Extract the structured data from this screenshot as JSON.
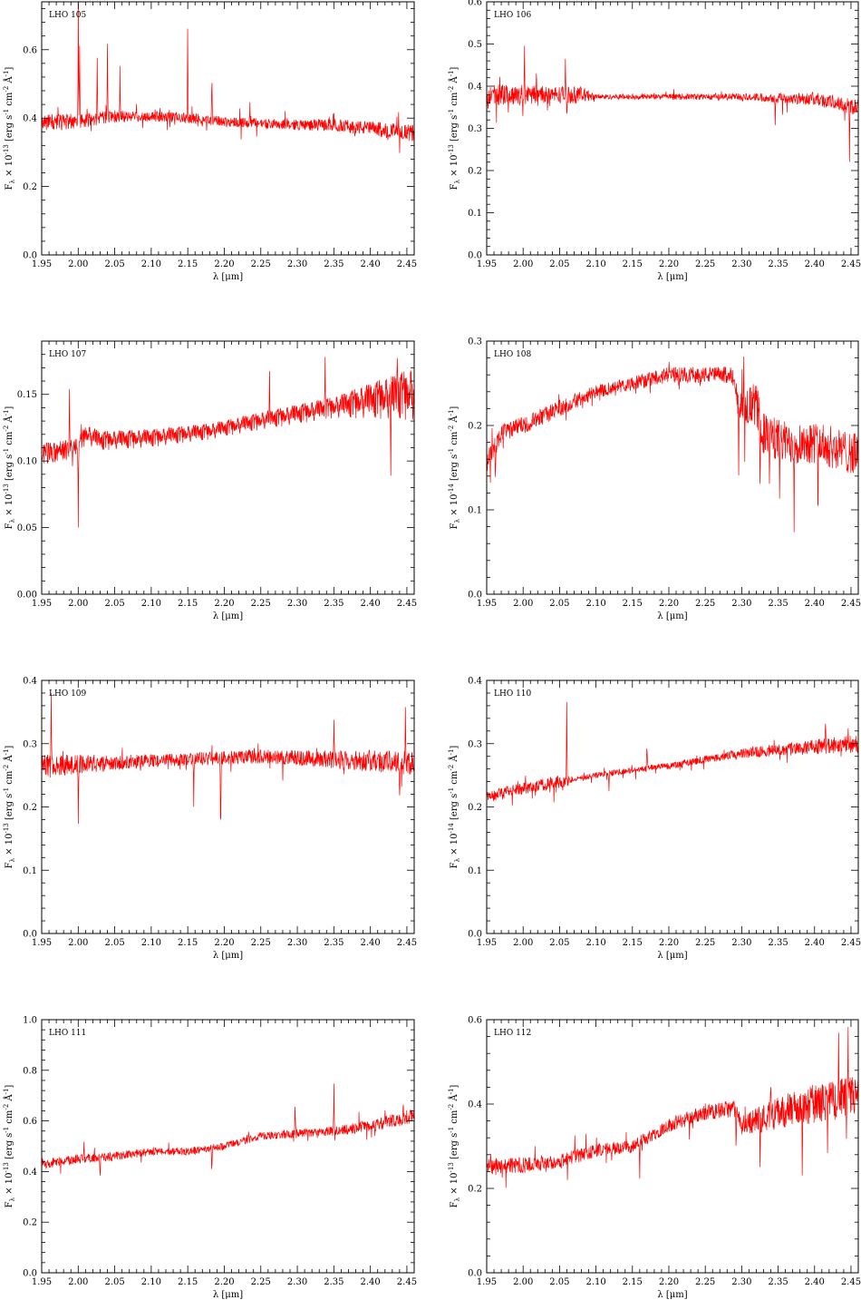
{
  "figure": {
    "panel_count": 8,
    "line_color": "#ff0000",
    "axis_color": "#000000",
    "background": "#ffffff"
  },
  "chart_data": [
    {
      "type": "line",
      "label": "LHO 105",
      "xlabel": "λ [μm]",
      "ylabel": "F_λ × 10^-13 [erg s^-1 cm^-2 Å^-1]",
      "ylabel_parts": {
        "base": "F",
        "sub": "λ",
        "mid": " × 10",
        "exp": "-13",
        "units": " [erg s",
        "u1": "-1",
        "cm": " cm",
        "u2": "-2",
        "ang": " Å",
        "u3": "-1",
        "close": "]"
      },
      "xlim": [
        1.95,
        2.46
      ],
      "ylim": [
        0.0,
        0.74
      ],
      "xticks": [
        1.95,
        2.0,
        2.05,
        2.1,
        2.15,
        2.2,
        2.25,
        2.3,
        2.35,
        2.4,
        2.45
      ],
      "xtick_labels": [
        "1.95",
        "2.00",
        "2.05",
        "2.10",
        "2.15",
        "2.20",
        "2.25",
        "2.30",
        "2.35",
        "2.40",
        "2.45"
      ],
      "yticks": [
        0.0,
        0.2,
        0.4,
        0.6
      ],
      "ytick_labels": [
        "0.0",
        "0.2",
        "0.4",
        "0.6"
      ],
      "continuum": [
        [
          1.95,
          0.39
        ],
        [
          2.0,
          0.39
        ],
        [
          2.05,
          0.405
        ],
        [
          2.1,
          0.405
        ],
        [
          2.15,
          0.4
        ],
        [
          2.2,
          0.39
        ],
        [
          2.25,
          0.385
        ],
        [
          2.3,
          0.38
        ],
        [
          2.35,
          0.38
        ],
        [
          2.4,
          0.37
        ],
        [
          2.46,
          0.355
        ]
      ],
      "noise": [
        [
          1.95,
          0.025
        ],
        [
          2.1,
          0.015
        ],
        [
          2.3,
          0.015
        ],
        [
          2.46,
          0.025
        ]
      ],
      "features": [
        [
          2.0,
          0.35
        ],
        [
          2.002,
          0.22
        ],
        [
          2.012,
          0.05
        ],
        [
          2.026,
          0.19
        ],
        [
          2.04,
          0.23
        ],
        [
          2.057,
          0.15
        ],
        [
          2.15,
          0.26
        ],
        [
          2.183,
          0.1
        ],
        [
          2.235,
          0.045
        ]
      ],
      "seed": 105
    },
    {
      "type": "line",
      "label": "LHO 106",
      "xlabel": "λ [μm]",
      "ylabel": "F_λ × 10^-13 [erg s^-1 cm^-2 Å^-1]",
      "ylabel_parts": {
        "base": "F",
        "sub": "λ",
        "mid": " × 10",
        "exp": "-13",
        "units": " [erg s",
        "u1": "-1",
        "cm": " cm",
        "u2": "-2",
        "ang": " Å",
        "u3": "-1",
        "close": "]"
      },
      "xlim": [
        1.95,
        2.46
      ],
      "ylim": [
        0.0,
        0.6
      ],
      "xticks": [
        1.95,
        2.0,
        2.05,
        2.1,
        2.15,
        2.2,
        2.25,
        2.3,
        2.35,
        2.4,
        2.45
      ],
      "xtick_labels": [
        "1.95",
        "2.00",
        "2.05",
        "2.10",
        "2.15",
        "2.20",
        "2.25",
        "2.30",
        "2.35",
        "2.40",
        "2.45"
      ],
      "yticks": [
        0.0,
        0.1,
        0.2,
        0.3,
        0.4,
        0.5,
        0.6
      ],
      "ytick_labels": [
        "0.0",
        "0.1",
        "0.2",
        "0.3",
        "0.4",
        "0.5",
        "0.6"
      ],
      "continuum": [
        [
          1.965,
          0.38
        ],
        [
          2.08,
          0.38
        ],
        [
          2.1,
          0.375
        ],
        [
          2.3,
          0.375
        ],
        [
          2.4,
          0.37
        ],
        [
          2.46,
          0.35
        ]
      ],
      "noise": [
        [
          1.965,
          0.025
        ],
        [
          2.08,
          0.02
        ],
        [
          2.1,
          0.006
        ],
        [
          2.3,
          0.008
        ],
        [
          2.46,
          0.02
        ]
      ],
      "features": [
        [
          2.002,
          0.1
        ],
        [
          2.018,
          0.06
        ],
        [
          2.058,
          0.08
        ],
        [
          2.06,
          -0.06
        ],
        [
          2.346,
          -0.07
        ],
        [
          2.448,
          -0.12
        ]
      ],
      "seed": 106
    },
    {
      "type": "line",
      "label": "LHO 107",
      "xlabel": "λ [μm]",
      "ylabel": "F_λ × 10^-13 [erg s^-1 cm^-2 Å^-1]",
      "ylabel_parts": {
        "base": "F",
        "sub": "λ",
        "mid": " × 10",
        "exp": "-13",
        "units": " [erg s",
        "u1": "-1",
        "cm": " cm",
        "u2": "-2",
        "ang": " Å",
        "u3": "-1",
        "close": "]"
      },
      "xlim": [
        1.95,
        2.46
      ],
      "ylim": [
        0.0,
        0.19
      ],
      "xticks": [
        1.95,
        2.0,
        2.05,
        2.1,
        2.15,
        2.2,
        2.25,
        2.3,
        2.35,
        2.4,
        2.45
      ],
      "xtick_labels": [
        "1.95",
        "2.00",
        "2.05",
        "2.10",
        "2.15",
        "2.20",
        "2.25",
        "2.30",
        "2.35",
        "2.40",
        "2.45"
      ],
      "yticks": [
        0.0,
        0.05,
        0.1,
        0.15
      ],
      "ytick_labels": [
        "0.00",
        "0.05",
        "0.10",
        "0.15"
      ],
      "continuum": [
        [
          1.95,
          0.105
        ],
        [
          2.0,
          0.11
        ],
        [
          2.01,
          0.12
        ],
        [
          2.03,
          0.115
        ],
        [
          2.1,
          0.117
        ],
        [
          2.18,
          0.122
        ],
        [
          2.25,
          0.13
        ],
        [
          2.3,
          0.135
        ],
        [
          2.35,
          0.14
        ],
        [
          2.4,
          0.145
        ],
        [
          2.46,
          0.15
        ]
      ],
      "noise": [
        [
          1.95,
          0.008
        ],
        [
          2.2,
          0.006
        ],
        [
          2.35,
          0.008
        ],
        [
          2.46,
          0.02
        ]
      ],
      "features": [
        [
          1.988,
          0.045
        ],
        [
          2.0,
          -0.06
        ],
        [
          2.262,
          0.03
        ],
        [
          2.338,
          0.045
        ],
        [
          2.428,
          -0.07
        ],
        [
          2.437,
          0.035
        ]
      ],
      "seed": 107
    },
    {
      "type": "line",
      "label": "LHO 108",
      "xlabel": "λ [μm]",
      "ylabel": "F_λ × 10^-14 [erg s^-1 cm^-2 Å^-1]",
      "ylabel_parts": {
        "base": "F",
        "sub": "λ",
        "mid": " × 10",
        "exp": "-14",
        "units": " [erg s",
        "u1": "-1",
        "cm": " cm",
        "u2": "-2",
        "ang": " Å",
        "u3": "-1",
        "close": "]"
      },
      "xlim": [
        1.95,
        2.46
      ],
      "ylim": [
        0.0,
        0.3
      ],
      "xticks": [
        1.95,
        2.0,
        2.05,
        2.1,
        2.15,
        2.2,
        2.25,
        2.3,
        2.35,
        2.4,
        2.45
      ],
      "xtick_labels": [
        "1.95",
        "2.00",
        "2.05",
        "2.10",
        "2.15",
        "2.20",
        "2.25",
        "2.30",
        "2.35",
        "2.40",
        "2.45"
      ],
      "yticks": [
        0.0,
        0.1,
        0.2,
        0.3
      ],
      "ytick_labels": [
        "0.0",
        "0.1",
        "0.2",
        "0.3"
      ],
      "continuum": [
        [
          1.95,
          0.155
        ],
        [
          1.97,
          0.19
        ],
        [
          2.0,
          0.2
        ],
        [
          2.05,
          0.22
        ],
        [
          2.1,
          0.24
        ],
        [
          2.15,
          0.25
        ],
        [
          2.2,
          0.26
        ],
        [
          2.25,
          0.26
        ],
        [
          2.29,
          0.26
        ],
        [
          2.295,
          0.22
        ],
        [
          2.32,
          0.225
        ],
        [
          2.33,
          0.19
        ],
        [
          2.36,
          0.18
        ],
        [
          2.4,
          0.18
        ],
        [
          2.46,
          0.165
        ]
      ],
      "noise": [
        [
          1.95,
          0.012
        ],
        [
          2.1,
          0.008
        ],
        [
          2.29,
          0.01
        ],
        [
          2.3,
          0.025
        ],
        [
          2.46,
          0.025
        ]
      ],
      "features": [
        [
          1.962,
          -0.03
        ],
        [
          2.296,
          -0.09
        ],
        [
          2.325,
          -0.1
        ],
        [
          2.338,
          -0.05
        ],
        [
          2.352,
          -0.06
        ],
        [
          2.372,
          -0.09
        ],
        [
          2.405,
          -0.06
        ]
      ],
      "seed": 108
    },
    {
      "type": "line",
      "label": "LHO 109",
      "xlabel": "λ [μm]",
      "ylabel": "F_λ × 10^-13 [erg s^-1 cm^-2 Å^-1]",
      "ylabel_parts": {
        "base": "F",
        "sub": "λ",
        "mid": " × 10",
        "exp": "-13",
        "units": " [erg s",
        "u1": "-1",
        "cm": " cm",
        "u2": "-2",
        "ang": " Å",
        "u3": "-1",
        "close": "]"
      },
      "xlim": [
        1.95,
        2.46
      ],
      "ylim": [
        0.0,
        0.4
      ],
      "xticks": [
        1.95,
        2.0,
        2.05,
        2.1,
        2.15,
        2.2,
        2.25,
        2.3,
        2.35,
        2.4,
        2.45
      ],
      "xtick_labels": [
        "1.95",
        "2.00",
        "2.05",
        "2.10",
        "2.15",
        "2.20",
        "2.25",
        "2.30",
        "2.35",
        "2.40",
        "2.45"
      ],
      "yticks": [
        0.0,
        0.1,
        0.2,
        0.3,
        0.4
      ],
      "ytick_labels": [
        "0.0",
        "0.1",
        "0.2",
        "0.3",
        "0.4"
      ],
      "continuum": [
        [
          1.95,
          0.265
        ],
        [
          2.05,
          0.27
        ],
        [
          2.15,
          0.275
        ],
        [
          2.25,
          0.28
        ],
        [
          2.35,
          0.275
        ],
        [
          2.46,
          0.27
        ]
      ],
      "noise": [
        [
          1.95,
          0.018
        ],
        [
          2.1,
          0.01
        ],
        [
          2.3,
          0.012
        ],
        [
          2.46,
          0.02
        ]
      ],
      "features": [
        [
          1.963,
          0.13
        ],
        [
          2.0,
          -0.1
        ],
        [
          2.195,
          -0.1
        ],
        [
          2.158,
          -0.05
        ],
        [
          2.35,
          0.07
        ],
        [
          2.448,
          0.08
        ],
        [
          2.44,
          -0.06
        ]
      ],
      "seed": 109
    },
    {
      "type": "line",
      "label": "LHO 110",
      "xlabel": "λ [μm]",
      "ylabel": "F_λ × 10^-14 [erg s^-1 cm^-2 Å^-1]",
      "ylabel_parts": {
        "base": "F",
        "sub": "λ",
        "mid": " × 10",
        "exp": "-14",
        "units": " [erg s",
        "u1": "-1",
        "cm": " cm",
        "u2": "-2",
        "ang": " Å",
        "u3": "-1",
        "close": "]"
      },
      "xlim": [
        1.95,
        2.46
      ],
      "ylim": [
        0.0,
        0.4
      ],
      "xticks": [
        1.95,
        2.0,
        2.05,
        2.1,
        2.15,
        2.2,
        2.25,
        2.3,
        2.35,
        2.4,
        2.45
      ],
      "xtick_labels": [
        "1.95",
        "2.00",
        "2.05",
        "2.10",
        "2.15",
        "2.20",
        "2.25",
        "2.30",
        "2.35",
        "2.40",
        "2.45"
      ],
      "yticks": [
        0.0,
        0.1,
        0.2,
        0.3,
        0.4
      ],
      "ytick_labels": [
        "0.0",
        "0.1",
        "0.2",
        "0.3",
        "0.4"
      ],
      "continuum": [
        [
          1.95,
          0.215
        ],
        [
          2.0,
          0.23
        ],
        [
          2.05,
          0.24
        ],
        [
          2.1,
          0.25
        ],
        [
          2.15,
          0.258
        ],
        [
          2.2,
          0.265
        ],
        [
          2.25,
          0.275
        ],
        [
          2.3,
          0.285
        ],
        [
          2.35,
          0.29
        ],
        [
          2.4,
          0.295
        ],
        [
          2.46,
          0.3
        ]
      ],
      "noise": [
        [
          1.95,
          0.01
        ],
        [
          2.06,
          0.01
        ],
        [
          2.07,
          0.004
        ],
        [
          2.25,
          0.006
        ],
        [
          2.46,
          0.014
        ]
      ],
      "features": [
        [
          2.06,
          0.12
        ],
        [
          2.17,
          0.03
        ],
        [
          2.118,
          -0.03
        ],
        [
          2.415,
          0.035
        ]
      ],
      "seed": 110
    },
    {
      "type": "line",
      "label": "LHO 111",
      "xlabel": "λ [μm]",
      "ylabel": "F_λ × 10^-13 [erg s^-1 cm^-2 Å^-1]",
      "ylabel_parts": {
        "base": "F",
        "sub": "λ",
        "mid": " × 10",
        "exp": "-13",
        "units": " [erg s",
        "u1": "-1",
        "cm": " cm",
        "u2": "-2",
        "ang": " Å",
        "u3": "-1",
        "close": "]"
      },
      "xlim": [
        1.95,
        2.46
      ],
      "ylim": [
        0.0,
        1.0
      ],
      "xticks": [
        1.95,
        2.0,
        2.05,
        2.1,
        2.15,
        2.2,
        2.25,
        2.3,
        2.35,
        2.4,
        2.45
      ],
      "xtick_labels": [
        "1.95",
        "2.00",
        "2.05",
        "2.10",
        "2.15",
        "2.20",
        "2.25",
        "2.30",
        "2.35",
        "2.40",
        "2.45"
      ],
      "yticks": [
        0.0,
        0.2,
        0.4,
        0.6,
        0.8,
        1.0
      ],
      "ytick_labels": [
        "0.0",
        "0.2",
        "0.4",
        "0.6",
        "0.8",
        "1.0"
      ],
      "continuum": [
        [
          1.95,
          0.43
        ],
        [
          2.0,
          0.45
        ],
        [
          2.05,
          0.46
        ],
        [
          2.1,
          0.48
        ],
        [
          2.15,
          0.48
        ],
        [
          2.2,
          0.5
        ],
        [
          2.25,
          0.54
        ],
        [
          2.3,
          0.55
        ],
        [
          2.35,
          0.56
        ],
        [
          2.4,
          0.58
        ],
        [
          2.46,
          0.62
        ]
      ],
      "noise": [
        [
          1.95,
          0.02
        ],
        [
          2.2,
          0.014
        ],
        [
          2.35,
          0.018
        ],
        [
          2.46,
          0.03
        ]
      ],
      "features": [
        [
          2.35,
          0.2
        ],
        [
          2.297,
          0.11
        ],
        [
          2.183,
          -0.08
        ],
        [
          2.03,
          -0.07
        ],
        [
          2.008,
          0.08
        ],
        [
          2.445,
          0.08
        ]
      ],
      "seed": 111
    },
    {
      "type": "line",
      "label": "LHO 112",
      "xlabel": "λ [μm]",
      "ylabel": "F_λ × 10^-13 [erg s^-1 cm^-2 Å^-1]",
      "ylabel_parts": {
        "base": "F",
        "sub": "λ",
        "mid": " × 10",
        "exp": "-13",
        "units": " [erg s",
        "u1": "-1",
        "cm": " cm",
        "u2": "-2",
        "ang": " Å",
        "u3": "-1",
        "close": "]"
      },
      "xlim": [
        1.95,
        2.46
      ],
      "ylim": [
        0.0,
        0.6
      ],
      "xticks": [
        1.95,
        2.0,
        2.05,
        2.1,
        2.15,
        2.2,
        2.25,
        2.3,
        2.35,
        2.4,
        2.45
      ],
      "xtick_labels": [
        "1.95",
        "2.00",
        "2.05",
        "2.10",
        "2.15",
        "2.20",
        "2.25",
        "2.30",
        "2.35",
        "2.40",
        "2.45"
      ],
      "yticks": [
        0.0,
        0.2,
        0.4,
        0.6
      ],
      "ytick_labels": [
        "0.0",
        "0.2",
        "0.4",
        "0.6"
      ],
      "continuum": [
        [
          1.95,
          0.25
        ],
        [
          2.0,
          0.255
        ],
        [
          2.05,
          0.265
        ],
        [
          2.1,
          0.29
        ],
        [
          2.15,
          0.3
        ],
        [
          2.2,
          0.35
        ],
        [
          2.25,
          0.38
        ],
        [
          2.29,
          0.39
        ],
        [
          2.3,
          0.35
        ],
        [
          2.35,
          0.38
        ],
        [
          2.4,
          0.4
        ],
        [
          2.46,
          0.42
        ]
      ],
      "noise": [
        [
          1.95,
          0.02
        ],
        [
          2.15,
          0.015
        ],
        [
          2.29,
          0.02
        ],
        [
          2.35,
          0.04
        ],
        [
          2.46,
          0.05
        ]
      ],
      "features": [
        [
          2.16,
          -0.08
        ],
        [
          2.34,
          0.1
        ],
        [
          2.383,
          -0.15
        ],
        [
          2.433,
          0.13
        ],
        [
          2.446,
          0.12
        ],
        [
          2.292,
          -0.1
        ],
        [
          2.325,
          -0.1
        ]
      ],
      "seed": 112
    }
  ]
}
